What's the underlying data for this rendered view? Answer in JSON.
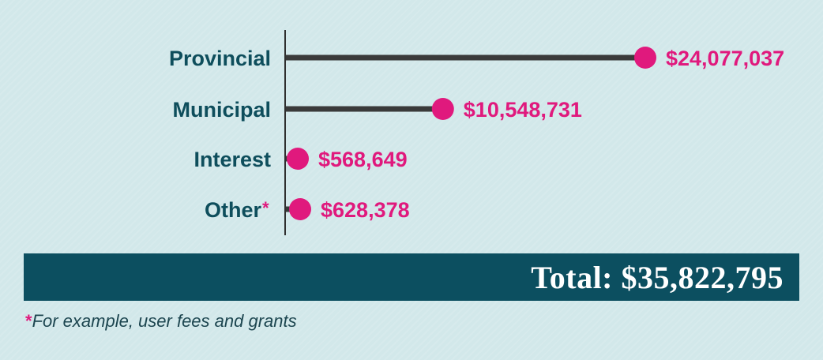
{
  "chart_data": {
    "type": "bar",
    "categories": [
      "Provincial",
      "Municipal",
      "Interest",
      "Other"
    ],
    "values": [
      24077037,
      10548731,
      568649,
      628378
    ],
    "value_labels": [
      "$24,077,037",
      "$10,548,731",
      "$568,649",
      "$628,378"
    ],
    "footnote_markers": [
      "",
      "",
      "",
      "*"
    ],
    "colors": {
      "stem": "#3a3a3a",
      "dot": "#e0197d",
      "category_text": "#0e4e5c",
      "value_text": "#e0197d"
    }
  },
  "total": {
    "label": "Total: $35,822,795",
    "color": "#0c4f60"
  },
  "footnote": {
    "marker": "*",
    "text": "For example, user fees and grants"
  }
}
